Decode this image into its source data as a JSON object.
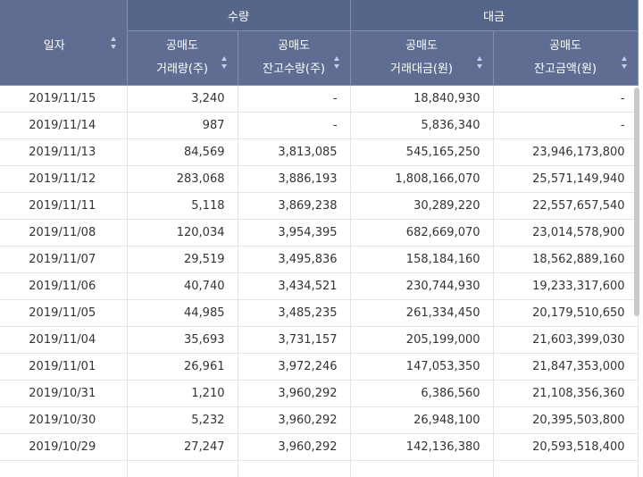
{
  "headers": {
    "date": "일자",
    "groups": [
      "수량",
      "대금"
    ],
    "columns": [
      [
        "공매도",
        "거래량(주)"
      ],
      [
        "공매도",
        "잔고수량(주)"
      ],
      [
        "공매도",
        "거래대금(원)"
      ],
      [
        "공매도",
        "잔고금액(원)"
      ]
    ]
  },
  "rows": [
    [
      "2019/11/15",
      "3,240",
      "-",
      "18,840,930",
      "-"
    ],
    [
      "2019/11/14",
      "987",
      "-",
      "5,836,340",
      "-"
    ],
    [
      "2019/11/13",
      "84,569",
      "3,813,085",
      "545,165,250",
      "23,946,173,800"
    ],
    [
      "2019/11/12",
      "283,068",
      "3,886,193",
      "1,808,166,070",
      "25,571,149,940"
    ],
    [
      "2019/11/11",
      "5,118",
      "3,869,238",
      "30,289,220",
      "22,557,657,540"
    ],
    [
      "2019/11/08",
      "120,034",
      "3,954,395",
      "682,669,070",
      "23,014,578,900"
    ],
    [
      "2019/11/07",
      "29,519",
      "3,495,836",
      "158,184,160",
      "18,562,889,160"
    ],
    [
      "2019/11/06",
      "40,740",
      "3,434,521",
      "230,744,930",
      "19,233,317,600"
    ],
    [
      "2019/11/05",
      "44,985",
      "3,485,235",
      "261,334,450",
      "20,179,510,650"
    ],
    [
      "2019/11/04",
      "35,693",
      "3,731,157",
      "205,199,000",
      "21,603,399,030"
    ],
    [
      "2019/11/01",
      "26,961",
      "3,972,246",
      "147,053,350",
      "21,847,353,000"
    ],
    [
      "2019/10/31",
      "1,210",
      "3,960,292",
      "6,386,560",
      "21,108,356,360"
    ],
    [
      "2019/10/30",
      "5,232",
      "3,960,292",
      "26,948,100",
      "20,395,503,800"
    ],
    [
      "2019/10/29",
      "27,247",
      "3,960,292",
      "142,136,380",
      "20,593,518,400"
    ],
    [
      "",
      "",
      "",
      "",
      ""
    ]
  ]
}
